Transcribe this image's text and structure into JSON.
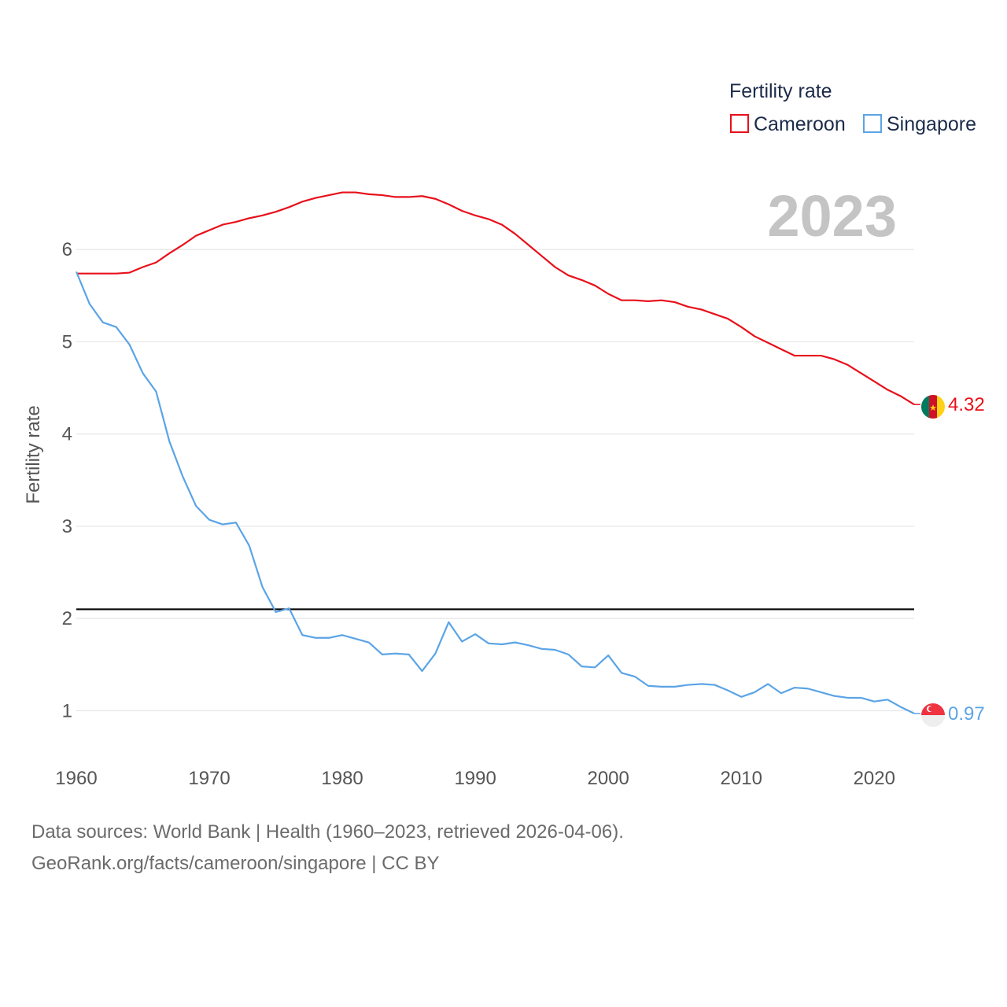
{
  "chart_data": {
    "type": "line",
    "title": "Fertility rate",
    "ylabel": "Fertility rate",
    "xlabel": "",
    "current_year_label": "2023",
    "xlim": [
      1960,
      2023
    ],
    "ylim": [
      0.5,
      7.0
    ],
    "x_ticks": [
      1960,
      1970,
      1980,
      1990,
      2000,
      2010,
      2020
    ],
    "y_ticks": [
      1,
      2,
      3,
      4,
      5,
      6
    ],
    "reference_line": {
      "value": 2.1
    },
    "legend": {
      "title": "Fertility rate",
      "placement": "top-right"
    },
    "series": [
      {
        "name": "Cameroon",
        "color": "#e8101a",
        "end_label": "4.32",
        "flag": "cameroon-flag",
        "points": [
          [
            1960,
            5.74
          ],
          [
            1961,
            5.74
          ],
          [
            1962,
            5.74
          ],
          [
            1963,
            5.74
          ],
          [
            1964,
            5.75
          ],
          [
            1965,
            5.81
          ],
          [
            1966,
            5.86
          ],
          [
            1967,
            5.96
          ],
          [
            1968,
            6.05
          ],
          [
            1969,
            6.15
          ],
          [
            1970,
            6.21
          ],
          [
            1971,
            6.27
          ],
          [
            1972,
            6.3
          ],
          [
            1973,
            6.34
          ],
          [
            1974,
            6.37
          ],
          [
            1975,
            6.41
          ],
          [
            1976,
            6.46
          ],
          [
            1977,
            6.52
          ],
          [
            1978,
            6.56
          ],
          [
            1979,
            6.59
          ],
          [
            1980,
            6.62
          ],
          [
            1981,
            6.62
          ],
          [
            1982,
            6.6
          ],
          [
            1983,
            6.59
          ],
          [
            1984,
            6.57
          ],
          [
            1985,
            6.57
          ],
          [
            1986,
            6.58
          ],
          [
            1987,
            6.55
          ],
          [
            1988,
            6.49
          ],
          [
            1989,
            6.42
          ],
          [
            1990,
            6.37
          ],
          [
            1991,
            6.33
          ],
          [
            1992,
            6.27
          ],
          [
            1993,
            6.17
          ],
          [
            1994,
            6.05
          ],
          [
            1995,
            5.93
          ],
          [
            1996,
            5.81
          ],
          [
            1997,
            5.72
          ],
          [
            1998,
            5.67
          ],
          [
            1999,
            5.61
          ],
          [
            2000,
            5.52
          ],
          [
            2001,
            5.45
          ],
          [
            2002,
            5.45
          ],
          [
            2003,
            5.44
          ],
          [
            2004,
            5.45
          ],
          [
            2005,
            5.43
          ],
          [
            2006,
            5.38
          ],
          [
            2007,
            5.35
          ],
          [
            2008,
            5.3
          ],
          [
            2009,
            5.25
          ],
          [
            2010,
            5.16
          ],
          [
            2011,
            5.06
          ],
          [
            2012,
            4.99
          ],
          [
            2013,
            4.92
          ],
          [
            2014,
            4.85
          ],
          [
            2015,
            4.85
          ],
          [
            2016,
            4.85
          ],
          [
            2017,
            4.81
          ],
          [
            2018,
            4.75
          ],
          [
            2019,
            4.66
          ],
          [
            2020,
            4.57
          ],
          [
            2021,
            4.48
          ],
          [
            2022,
            4.41
          ],
          [
            2023,
            4.32
          ]
        ]
      },
      {
        "name": "Singapore",
        "color": "#5ba4e6",
        "end_label": "0.97",
        "flag": "singapore-flag",
        "points": [
          [
            1960,
            5.76
          ],
          [
            1961,
            5.41
          ],
          [
            1962,
            5.21
          ],
          [
            1963,
            5.16
          ],
          [
            1964,
            4.97
          ],
          [
            1965,
            4.66
          ],
          [
            1966,
            4.46
          ],
          [
            1967,
            3.92
          ],
          [
            1968,
            3.54
          ],
          [
            1969,
            3.22
          ],
          [
            1970,
            3.07
          ],
          [
            1971,
            3.02
          ],
          [
            1972,
            3.04
          ],
          [
            1973,
            2.79
          ],
          [
            1974,
            2.34
          ],
          [
            1975,
            2.07
          ],
          [
            1976,
            2.11
          ],
          [
            1977,
            1.82
          ],
          [
            1978,
            1.79
          ],
          [
            1979,
            1.79
          ],
          [
            1980,
            1.82
          ],
          [
            1981,
            1.78
          ],
          [
            1982,
            1.74
          ],
          [
            1983,
            1.61
          ],
          [
            1984,
            1.62
          ],
          [
            1985,
            1.61
          ],
          [
            1986,
            1.43
          ],
          [
            1987,
            1.62
          ],
          [
            1988,
            1.96
          ],
          [
            1989,
            1.75
          ],
          [
            1990,
            1.83
          ],
          [
            1991,
            1.73
          ],
          [
            1992,
            1.72
          ],
          [
            1993,
            1.74
          ],
          [
            1994,
            1.71
          ],
          [
            1995,
            1.67
          ],
          [
            1996,
            1.66
          ],
          [
            1997,
            1.61
          ],
          [
            1998,
            1.48
          ],
          [
            1999,
            1.47
          ],
          [
            2000,
            1.6
          ],
          [
            2001,
            1.41
          ],
          [
            2002,
            1.37
          ],
          [
            2003,
            1.27
          ],
          [
            2004,
            1.26
          ],
          [
            2005,
            1.26
          ],
          [
            2006,
            1.28
          ],
          [
            2007,
            1.29
          ],
          [
            2008,
            1.28
          ],
          [
            2009,
            1.22
          ],
          [
            2010,
            1.15
          ],
          [
            2011,
            1.2
          ],
          [
            2012,
            1.29
          ],
          [
            2013,
            1.19
          ],
          [
            2014,
            1.25
          ],
          [
            2015,
            1.24
          ],
          [
            2016,
            1.2
          ],
          [
            2017,
            1.16
          ],
          [
            2018,
            1.14
          ],
          [
            2019,
            1.14
          ],
          [
            2020,
            1.1
          ],
          [
            2021,
            1.12
          ],
          [
            2022,
            1.04
          ],
          [
            2023,
            0.97
          ]
        ]
      }
    ]
  },
  "footer": {
    "line1": "Data sources: World Bank | Health (1960–2023, retrieved 2026-04-06).",
    "line2": "GeoRank.org/facts/cameroon/singapore | CC BY"
  }
}
